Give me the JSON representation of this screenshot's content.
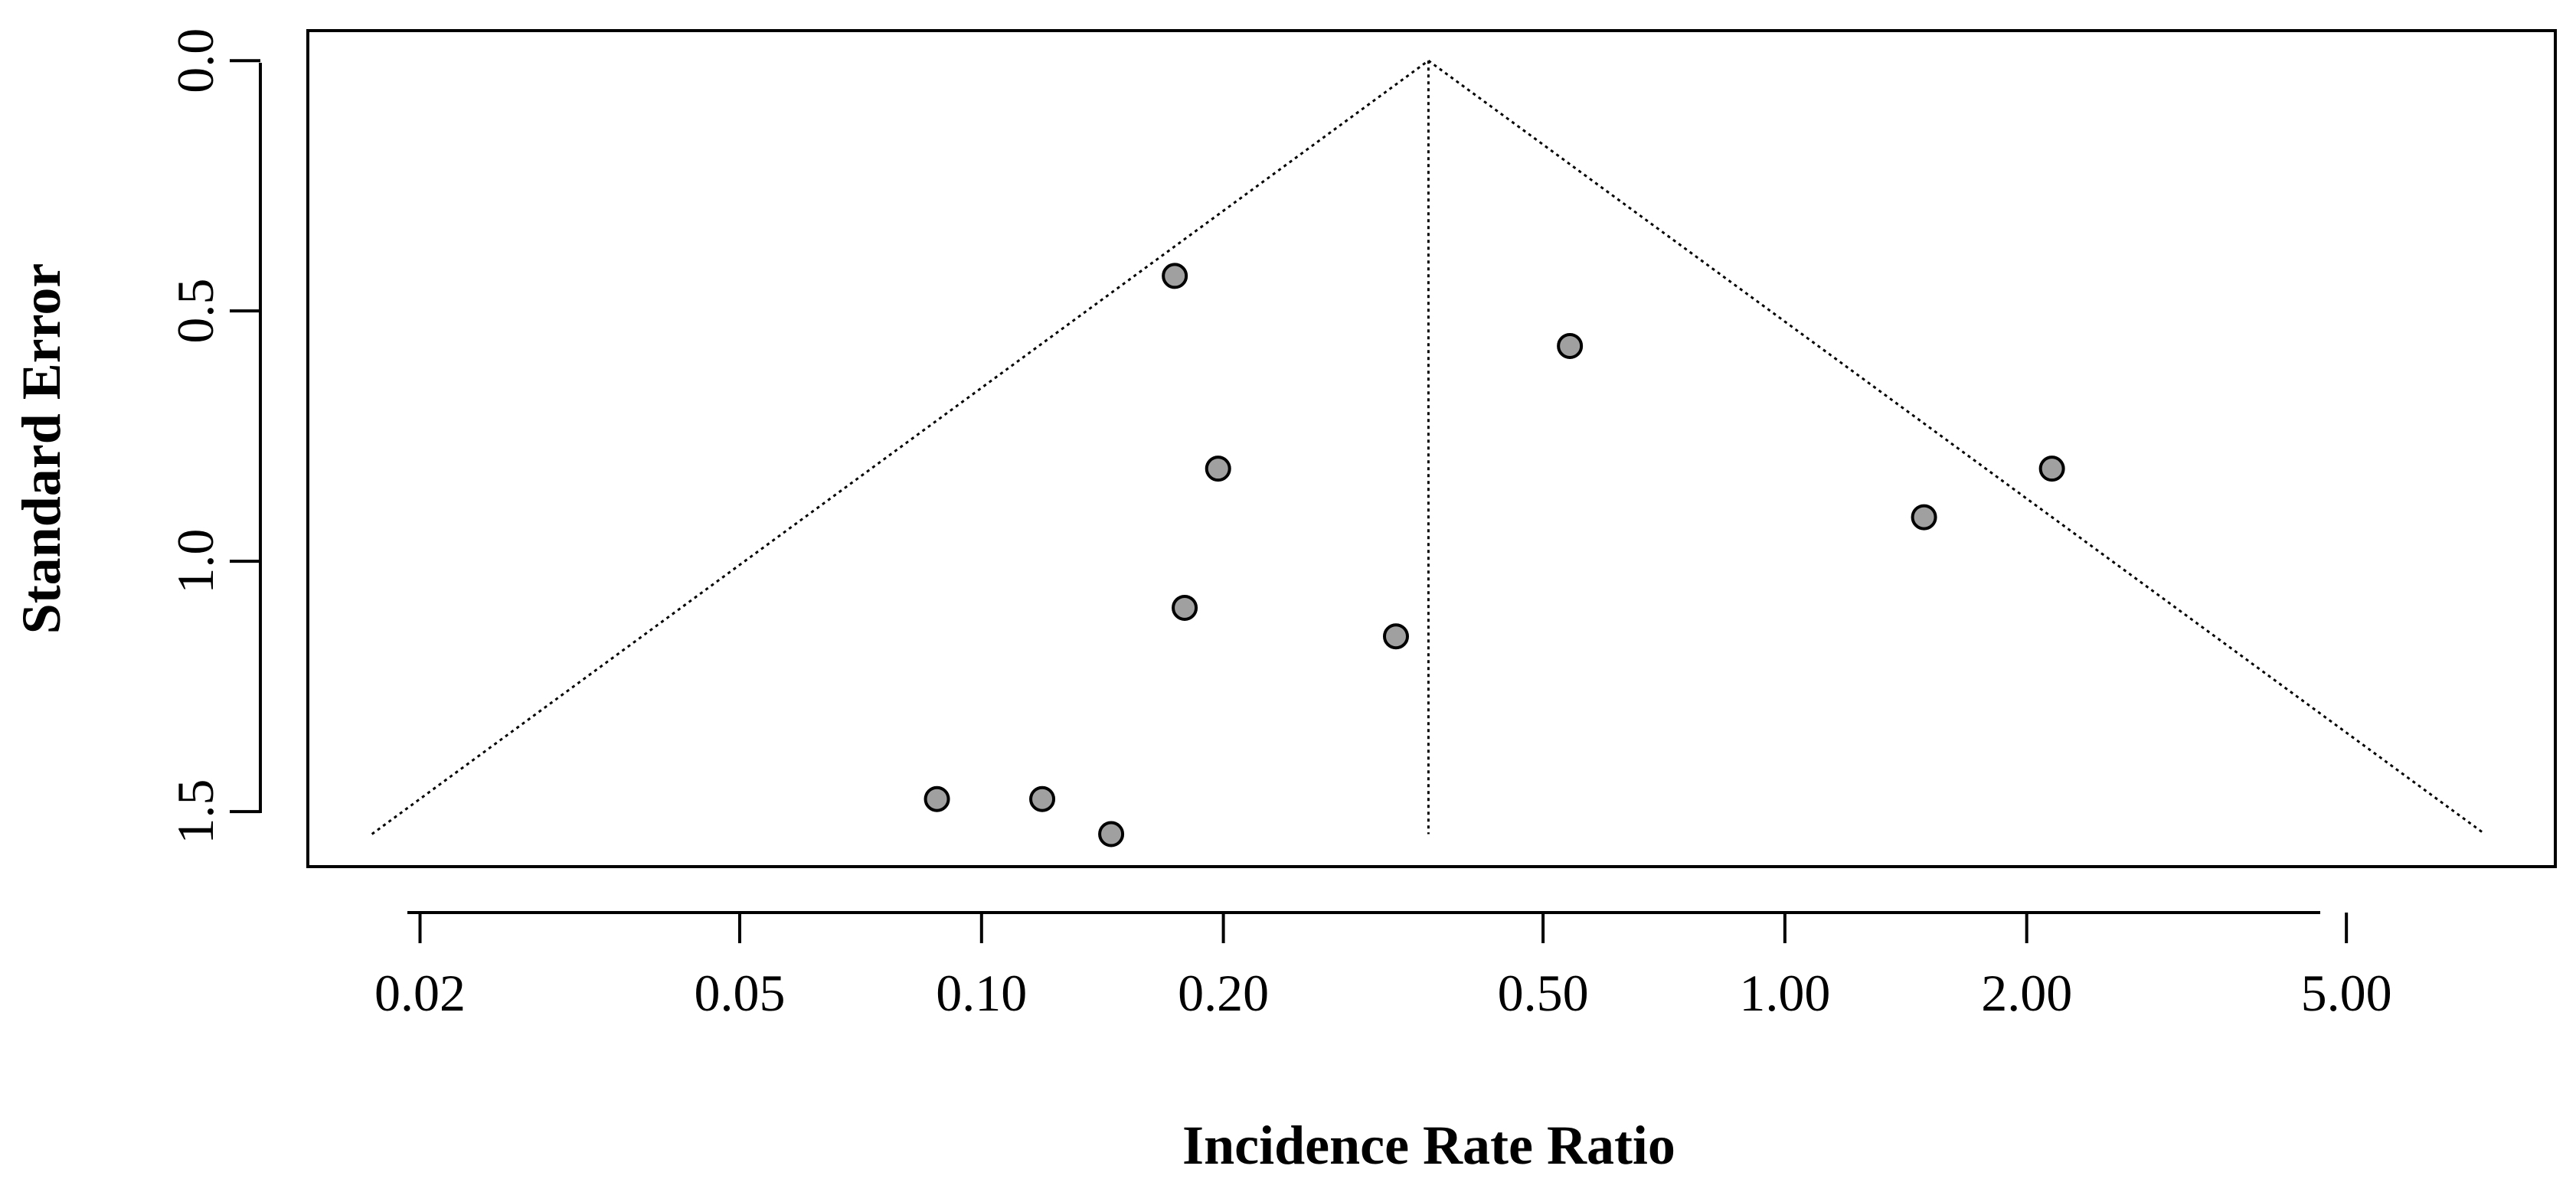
{
  "chart_data": {
    "type": "scatter",
    "subtype": "funnel-plot",
    "title": "",
    "xlabel": "Incidence Rate Ratio",
    "ylabel": "Standard Error",
    "x_scale": "log",
    "xlim": [
      0.0145,
      9.1
    ],
    "ylim": [
      1.61,
      -0.06
    ],
    "y_reversed": true,
    "x_ticks": [
      0.02,
      0.05,
      0.1,
      0.2,
      0.5,
      1.0,
      2.0,
      5.0
    ],
    "x_tick_labels": [
      "0.02",
      "0.05",
      "0.10",
      "0.20",
      "0.50",
      "1.00",
      "2.00",
      "5.00"
    ],
    "y_ticks": [
      0.0,
      0.5,
      1.0,
      1.5
    ],
    "y_tick_labels": [
      "0.0",
      "0.5",
      "1.0",
      "1.5"
    ],
    "grid": false,
    "pooled_estimate": 0.36,
    "funnel": {
      "apex_se": 0.0,
      "max_se": 1.545,
      "z": 1.96,
      "line_style": "dotted"
    },
    "points": [
      {
        "x": 0.174,
        "y": 0.43
      },
      {
        "x": 0.54,
        "y": 0.57
      },
      {
        "x": 0.197,
        "y": 0.815
      },
      {
        "x": 2.15,
        "y": 0.815
      },
      {
        "x": 1.49,
        "y": 0.912
      },
      {
        "x": 0.179,
        "y": 1.093
      },
      {
        "x": 0.328,
        "y": 1.15
      },
      {
        "x": 0.088,
        "y": 1.475
      },
      {
        "x": 0.119,
        "y": 1.475
      },
      {
        "x": 0.145,
        "y": 1.545
      }
    ],
    "marker_color": "#a0a0a0",
    "marker_edge_color": "#000000"
  }
}
